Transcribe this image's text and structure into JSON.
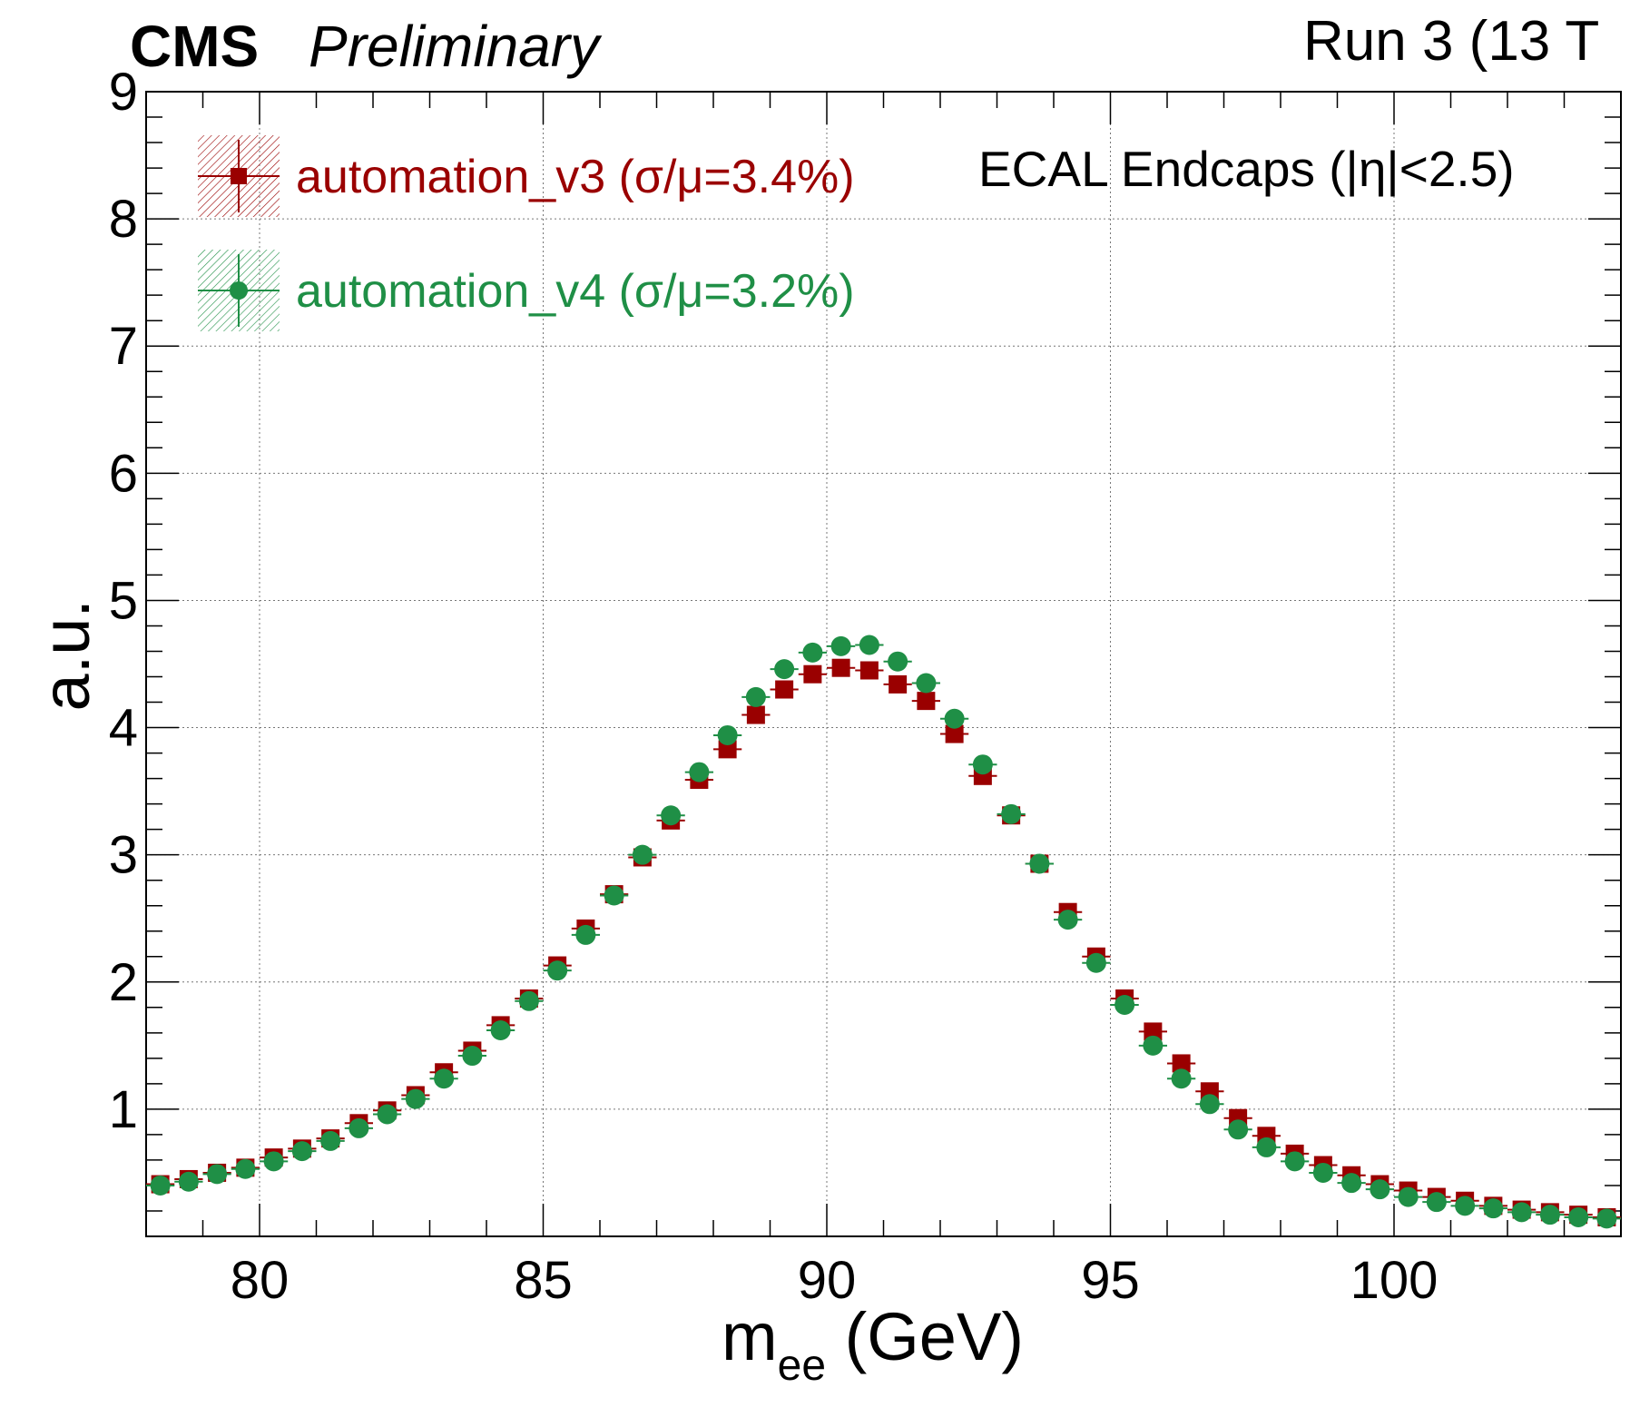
{
  "header": {
    "experiment": "CMS",
    "status": "Preliminary",
    "run_label": "Run 3 (13 T"
  },
  "chart_data": {
    "type": "scatter",
    "xlabel": "m",
    "xlabel_sub": "ee",
    "xlabel_unit": " (GeV)",
    "ylabel": "a.u.",
    "annotation": "ECAL Endcaps (|η|<2.5)",
    "xlim": [
      78,
      104
    ],
    "ylim": [
      0,
      9
    ],
    "x_ticks": [
      80,
      85,
      90,
      95,
      100
    ],
    "y_ticks": [
      1,
      2,
      3,
      4,
      5,
      6,
      7,
      8,
      9
    ],
    "grid": true,
    "legend_position": "top-left",
    "x": [
      78.25,
      78.75,
      79.25,
      79.75,
      80.25,
      80.75,
      81.25,
      81.75,
      82.25,
      82.75,
      83.25,
      83.75,
      84.25,
      84.75,
      85.25,
      85.75,
      86.25,
      86.75,
      87.25,
      87.75,
      88.25,
      88.75,
      89.25,
      89.75,
      90.25,
      90.75,
      91.25,
      91.75,
      92.25,
      92.75,
      93.25,
      93.75,
      94.25,
      94.75,
      95.25,
      95.75,
      96.25,
      96.75,
      97.25,
      97.75,
      98.25,
      98.75,
      99.25,
      99.75,
      100.25,
      100.75,
      101.25,
      101.75,
      102.25,
      102.75,
      103.25,
      103.75
    ],
    "series": [
      {
        "name": "automation_v3 (σ/μ=3.4%)",
        "marker": "square",
        "color": "#9a0000",
        "values": [
          0.41,
          0.45,
          0.5,
          0.54,
          0.62,
          0.69,
          0.77,
          0.89,
          0.99,
          1.11,
          1.29,
          1.46,
          1.66,
          1.87,
          2.13,
          2.42,
          2.69,
          2.98,
          3.27,
          3.59,
          3.83,
          4.1,
          4.3,
          4.42,
          4.47,
          4.45,
          4.34,
          4.21,
          3.95,
          3.62,
          3.31,
          2.93,
          2.55,
          2.2,
          1.87,
          1.61,
          1.36,
          1.14,
          0.93,
          0.79,
          0.65,
          0.56,
          0.48,
          0.41,
          0.36,
          0.31,
          0.28,
          0.24,
          0.21,
          0.19,
          0.17,
          0.15
        ]
      },
      {
        "name": "automation_v4 (σ/μ=3.2%)",
        "marker": "circle",
        "color": "#1f8f46",
        "values": [
          0.4,
          0.43,
          0.49,
          0.53,
          0.59,
          0.67,
          0.75,
          0.85,
          0.96,
          1.08,
          1.24,
          1.42,
          1.62,
          1.85,
          2.09,
          2.37,
          2.68,
          3.0,
          3.31,
          3.65,
          3.94,
          4.24,
          4.46,
          4.59,
          4.64,
          4.65,
          4.52,
          4.35,
          4.07,
          3.71,
          3.32,
          2.93,
          2.49,
          2.15,
          1.82,
          1.5,
          1.24,
          1.04,
          0.84,
          0.7,
          0.59,
          0.5,
          0.42,
          0.37,
          0.31,
          0.27,
          0.24,
          0.22,
          0.19,
          0.17,
          0.15,
          0.14
        ]
      }
    ]
  }
}
